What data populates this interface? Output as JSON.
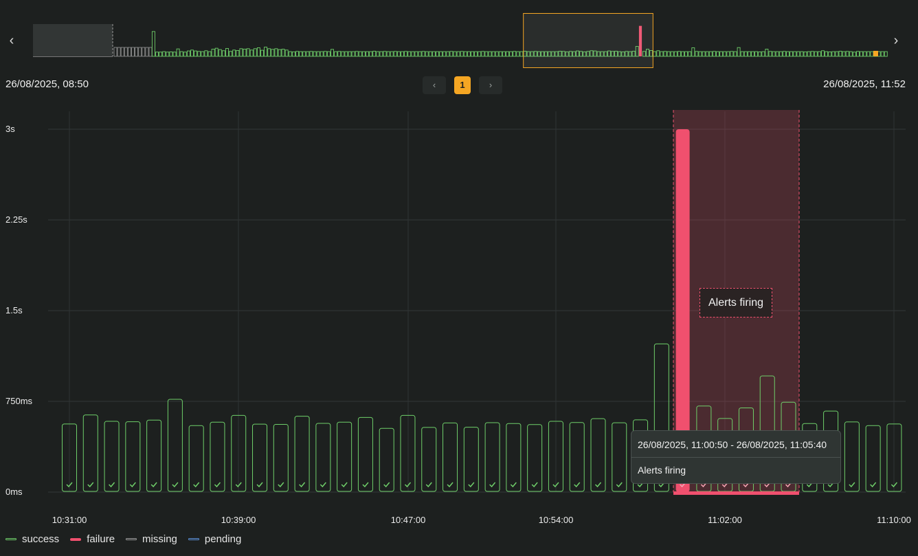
{
  "navigation": {
    "prev_icon": "chevron-left-icon",
    "next_icon": "chevron-right-icon",
    "prev_glyph": "‹",
    "next_glyph": "›"
  },
  "range": {
    "start_label": "26/08/2025, 08:50",
    "end_label": "26/08/2025, 11:52"
  },
  "pagination": {
    "prev_glyph": "‹",
    "next_glyph": "›",
    "current_page": "1"
  },
  "colors": {
    "success": "#6fcf6a",
    "failure": "#f0506e",
    "missing": "#9a9a9a",
    "pending": "#5b8fd6",
    "selection": "#f5a623",
    "background": "#1d201f"
  },
  "alert_label": "Alerts firing",
  "tooltip": {
    "range": "26/08/2025, 11:00:50 - 26/08/2025, 11:05:40",
    "status": "Alerts firing"
  },
  "legend": [
    {
      "label": "success",
      "color": "#6fcf6a"
    },
    {
      "label": "failure",
      "color": "#f0506e"
    },
    {
      "label": "missing",
      "color": "#9a9a9a"
    },
    {
      "label": "pending",
      "color": "#5b8fd6"
    }
  ],
  "chart_data": {
    "type": "bar",
    "y_ticks": [
      "3s",
      "2.25s",
      "1.5s",
      "750ms",
      "0ms"
    ],
    "y_tick_values_ms": [
      3000,
      2250,
      1500,
      750,
      0
    ],
    "ylim_ms": [
      0,
      3000
    ],
    "x_ticks": [
      "10:31:00",
      "10:39:00",
      "10:47:00",
      "10:54:00",
      "11:02:00",
      "11:10:00"
    ],
    "grid": true,
    "legend_position": "bottom-left",
    "series": [
      {
        "status": "success",
        "values_ms": [
          563,
          638,
          585,
          582,
          595,
          767,
          550,
          578,
          634,
          562,
          560,
          627,
          568,
          578,
          617,
          527,
          634,
          535,
          572,
          536,
          574,
          567,
          558,
          585,
          575,
          607,
          573,
          597,
          1225,
          3000,
          712,
          609,
          696,
          960,
          743,
          567,
          670,
          580,
          550,
          563
        ],
        "statuses": [
          "success",
          "success",
          "success",
          "success",
          "success",
          "success",
          "success",
          "success",
          "success",
          "success",
          "success",
          "success",
          "success",
          "success",
          "success",
          "success",
          "success",
          "success",
          "success",
          "success",
          "success",
          "success",
          "success",
          "success",
          "success",
          "success",
          "success",
          "success",
          "success",
          "failure",
          "failure",
          "failure",
          "failure",
          "failure",
          "failure",
          "success",
          "success",
          "success",
          "success",
          "success"
        ]
      }
    ],
    "alert_region": {
      "label": "Alerts firing",
      "start": "11:00:50",
      "end": "11:05:40"
    },
    "overview": {
      "type": "bar",
      "missing_count": 11,
      "spike_index": 0,
      "failure_index": 139,
      "values_ms": [
        2200,
        380,
        380,
        420,
        380,
        400,
        380,
        660,
        420,
        380,
        480,
        560,
        480,
        440,
        420,
        500,
        420,
        640,
        720,
        600,
        500,
        700,
        440,
        560,
        520,
        680,
        640,
        680,
        560,
        680,
        760,
        540,
        820,
        680,
        620,
        680,
        600,
        640,
        560,
        420,
        400,
        440,
        420,
        420,
        420,
        440,
        420,
        420,
        420,
        440,
        420,
        620,
        420,
        440,
        420,
        420,
        420,
        420,
        440,
        420,
        420,
        420,
        420,
        460,
        420,
        420,
        440,
        420,
        420,
        440,
        420,
        420,
        440,
        420,
        420,
        420,
        420,
        440,
        420,
        420,
        420,
        420,
        420,
        420,
        420,
        440,
        420,
        420,
        440,
        420,
        420,
        420,
        420,
        420,
        440,
        420,
        420,
        420,
        420,
        420,
        420,
        420,
        420,
        440,
        420,
        420,
        460,
        420,
        420,
        440,
        420,
        420,
        420,
        420,
        420,
        420,
        460,
        440,
        400,
        440,
        420,
        480,
        440,
        400,
        440,
        500,
        480,
        420,
        420,
        420,
        480,
        440,
        460,
        420,
        400,
        440,
        420,
        460,
        880,
        2700,
        440,
        640,
        520,
        420,
        500,
        420,
        440,
        420,
        420,
        420,
        440,
        420,
        420,
        420,
        760,
        440,
        420,
        420,
        420,
        420,
        440,
        420,
        420,
        420,
        420,
        440,
        420,
        780,
        420,
        420,
        420,
        420,
        420,
        400,
        420,
        640,
        440,
        420,
        420,
        420,
        440,
        420,
        420,
        420,
        420,
        420,
        400,
        420,
        440,
        420,
        420,
        500,
        420,
        400,
        420,
        420,
        460,
        420,
        440,
        420,
        380,
        440,
        420,
        420,
        420,
        420,
        420,
        420,
        420,
        420
      ],
      "selection": {
        "start_index": 107,
        "end_index": 143
      }
    }
  }
}
